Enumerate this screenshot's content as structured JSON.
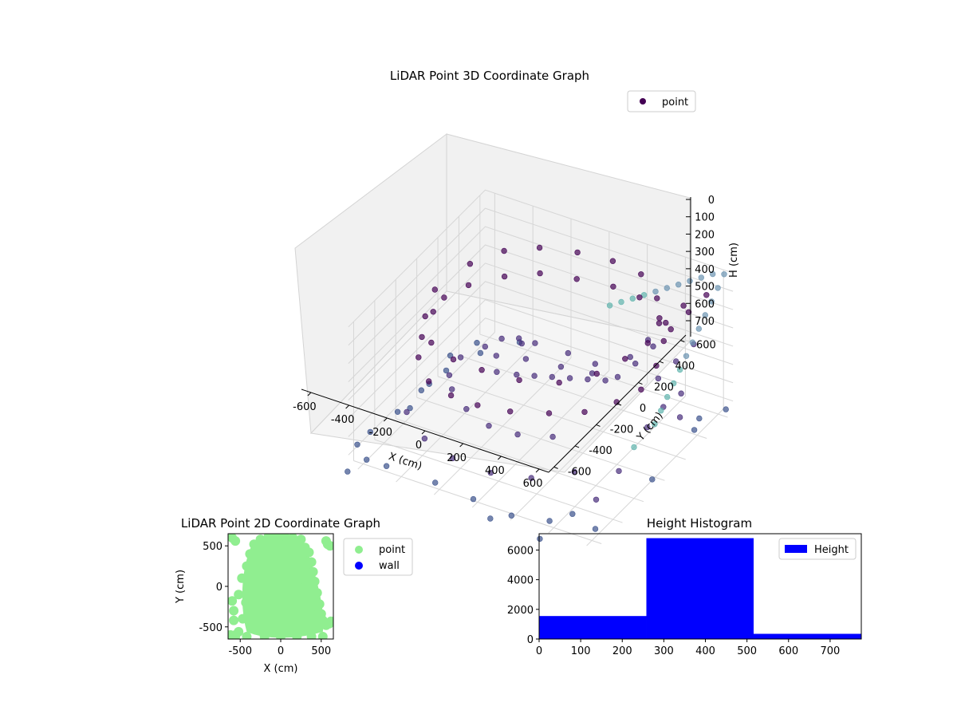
{
  "chart_data": [
    {
      "type": "scatter3d",
      "title": "LiDAR Point 3D Coordinate Graph",
      "xlabel": "X (cm)",
      "ylabel": "Y (cm)",
      "zlabel": "H (cm)",
      "xlim": [
        -650,
        650
      ],
      "ylim": [
        -650,
        650
      ],
      "zlim": [
        0,
        750
      ],
      "zaxis_inverted": true,
      "x_ticks": [
        -600,
        -400,
        -200,
        0,
        200,
        400,
        600
      ],
      "y_ticks": [
        -600,
        -400,
        -200,
        0,
        200,
        400,
        600
      ],
      "z_ticks": [
        0,
        100,
        200,
        300,
        400,
        500,
        600,
        700
      ],
      "grid": true,
      "legend": {
        "placement": "top-right",
        "entries": [
          {
            "label": "point",
            "color": "#440154"
          }
        ]
      },
      "colormap": "viridis",
      "series": [
        {
          "name": "point",
          "points": [
            [
              -520,
              -80,
              200
            ],
            [
              -480,
              -260,
              220
            ],
            [
              -420,
              -400,
              230
            ],
            [
              -300,
              -520,
              250
            ],
            [
              -150,
              -580,
              240
            ],
            [
              0,
              -600,
              230
            ],
            [
              160,
              -580,
              220
            ],
            [
              320,
              -500,
              220
            ],
            [
              440,
              -380,
              240
            ],
            [
              520,
              -220,
              250
            ],
            [
              560,
              -60,
              260
            ],
            [
              540,
              120,
              240
            ],
            [
              480,
              300,
              230
            ],
            [
              380,
              440,
              220
            ],
            [
              220,
              540,
              220
            ],
            [
              60,
              580,
              240
            ],
            [
              -120,
              560,
              250
            ],
            [
              -280,
              500,
              240
            ],
            [
              -400,
              380,
              230
            ],
            [
              -500,
              220,
              220
            ],
            [
              -540,
              60,
              210
            ],
            [
              -500,
              -100,
              60
            ],
            [
              -440,
              -300,
              70
            ],
            [
              -320,
              -460,
              80
            ],
            [
              -160,
              -540,
              70
            ],
            [
              0,
              -560,
              60
            ],
            [
              180,
              -530,
              70
            ],
            [
              340,
              -440,
              80
            ],
            [
              460,
              -300,
              70
            ],
            [
              520,
              -140,
              60
            ],
            [
              540,
              40,
              70
            ],
            [
              500,
              220,
              80
            ],
            [
              400,
              380,
              70
            ],
            [
              250,
              500,
              60
            ],
            [
              80,
              540,
              70
            ],
            [
              -100,
              530,
              80
            ],
            [
              -260,
              460,
              70
            ],
            [
              -380,
              340,
              60
            ],
            [
              -470,
              180,
              70
            ],
            [
              -120,
              -200,
              320
            ],
            [
              -60,
              -120,
              360
            ],
            [
              0,
              -60,
              380
            ],
            [
              60,
              0,
              400
            ],
            [
              120,
              60,
              420
            ],
            [
              180,
              120,
              440
            ],
            [
              240,
              180,
              460
            ],
            [
              -200,
              -60,
              340
            ],
            [
              -100,
              40,
              380
            ],
            [
              40,
              120,
              420
            ],
            [
              160,
              200,
              460
            ],
            [
              260,
              260,
              480
            ],
            [
              -260,
              100,
              360
            ],
            [
              -140,
              200,
              400
            ],
            [
              0,
              260,
              440
            ],
            [
              120,
              300,
              480
            ],
            [
              -300,
              -300,
              420
            ],
            [
              -180,
              -380,
              440
            ],
            [
              -40,
              -420,
              460
            ],
            [
              100,
              -400,
              470
            ],
            [
              240,
              -320,
              480
            ],
            [
              -380,
              -180,
              440
            ],
            [
              -420,
              0,
              460
            ],
            [
              -380,
              160,
              480
            ],
            [
              -280,
              300,
              480
            ],
            [
              -460,
              -440,
              520
            ],
            [
              -300,
              -560,
              540
            ],
            [
              -120,
              -620,
              550
            ],
            [
              80,
              -620,
              560
            ],
            [
              260,
              -560,
              560
            ],
            [
              420,
              -440,
              540
            ],
            [
              -520,
              -300,
              600
            ],
            [
              -560,
              -120,
              620
            ],
            [
              -540,
              80,
              620
            ],
            [
              -460,
              260,
              600
            ],
            [
              -320,
              400,
              580
            ],
            [
              600,
              -560,
              560
            ],
            [
              620,
              -380,
              500
            ],
            [
              600,
              -200,
              480
            ],
            [
              560,
              0,
              500
            ],
            [
              620,
              200,
              540
            ],
            [
              -620,
              -620,
              650
            ],
            [
              -560,
              -640,
              700
            ],
            [
              -640,
              -460,
              680
            ],
            [
              520,
              -640,
              620
            ],
            [
              640,
              -640,
              660
            ],
            [
              -640,
              300,
              700
            ],
            [
              -600,
              480,
              720
            ],
            [
              -420,
              560,
              700
            ],
            [
              600,
              420,
              680
            ],
            [
              640,
              600,
              720
            ],
            [
              -200,
              -640,
              700
            ],
            [
              0,
              -640,
              720
            ],
            [
              200,
              -640,
              740
            ],
            [
              400,
              -640,
              700
            ],
            [
              -640,
              -200,
              720
            ],
            [
              -640,
              100,
              740
            ],
            [
              640,
              -100,
              700
            ],
            [
              640,
              300,
              660
            ],
            [
              -500,
              -560,
              760
            ],
            [
              100,
              -660,
              780
            ],
            [
              -660,
              -640,
              800
            ],
            [
              360,
              -660,
              800
            ],
            [
              620,
              620,
              0
            ],
            [
              620,
              560,
              40
            ],
            [
              620,
              500,
              80
            ],
            [
              620,
              440,
              120
            ],
            [
              620,
              380,
              160
            ],
            [
              620,
              320,
              200
            ],
            [
              620,
              260,
              240
            ],
            [
              620,
              200,
              280
            ],
            [
              620,
              140,
              320
            ],
            [
              620,
              80,
              360
            ],
            [
              620,
              20,
              400
            ],
            [
              620,
              -40,
              440
            ],
            [
              560,
              620,
              20
            ],
            [
              500,
              620,
              60
            ],
            [
              440,
              620,
              100
            ],
            [
              380,
              620,
              140
            ],
            [
              320,
              620,
              180
            ],
            [
              260,
              620,
              220
            ],
            [
              200,
              620,
              260
            ],
            [
              140,
              620,
              300
            ],
            [
              80,
              620,
              340
            ],
            [
              20,
              620,
              380
            ],
            [
              560,
              560,
              100
            ],
            [
              500,
              500,
              180
            ],
            [
              440,
              440,
              260
            ],
            [
              380,
              380,
              340
            ],
            [
              320,
              320,
              420
            ],
            [
              560,
              440,
              300
            ],
            [
              500,
              380,
              380
            ],
            [
              440,
              320,
              460
            ],
            [
              560,
              320,
              500
            ],
            [
              500,
              260,
              560
            ],
            [
              440,
              560,
              200
            ],
            [
              380,
              500,
              280
            ],
            [
              320,
              440,
              360
            ],
            [
              260,
              380,
              440
            ]
          ]
        }
      ]
    },
    {
      "type": "scatter",
      "title": "LiDAR Point 2D Coordinate Graph",
      "xlabel": "X (cm)",
      "ylabel": "Y (cm)",
      "xlim": [
        -650,
        650
      ],
      "ylim": [
        -650,
        650
      ],
      "x_ticks": [
        -500,
        0,
        500
      ],
      "y_ticks": [
        -500,
        0,
        500
      ],
      "legend": {
        "placement": "outside-right",
        "entries": [
          {
            "label": "point",
            "color": "#90ee90"
          },
          {
            "label": "wall",
            "color": "#0000ff"
          }
        ]
      },
      "series": [
        {
          "name": "point",
          "color": "#90ee90",
          "points": [
            [
              -600,
              -180
            ],
            [
              -580,
              -420
            ],
            [
              -560,
              -600
            ],
            [
              -520,
              -560
            ],
            [
              -470,
              -400
            ],
            [
              -430,
              -200
            ],
            [
              -400,
              50
            ],
            [
              -350,
              300
            ],
            [
              -330,
              520
            ],
            [
              -250,
              580
            ],
            [
              -200,
              -600
            ],
            [
              -150,
              620
            ],
            [
              -50,
              620
            ],
            [
              50,
              620
            ],
            [
              150,
              600
            ],
            [
              250,
              580
            ],
            [
              300,
              480
            ],
            [
              350,
              420
            ],
            [
              380,
              300
            ],
            [
              400,
              180
            ],
            [
              420,
              60
            ],
            [
              450,
              -80
            ],
            [
              480,
              -220
            ],
            [
              500,
              -340
            ],
            [
              520,
              -420
            ],
            [
              560,
              -480
            ],
            [
              600,
              -460
            ],
            [
              620,
              -430
            ],
            [
              520,
              -620
            ],
            [
              380,
              -620
            ],
            [
              200,
              -620
            ],
            [
              0,
              -620
            ],
            [
              -200,
              -620
            ],
            [
              -420,
              -620
            ],
            [
              -560,
              -620
            ],
            [
              -620,
              -600
            ],
            [
              -580,
              -300
            ],
            [
              -520,
              -100
            ],
            [
              -480,
              100
            ],
            [
              -420,
              250
            ],
            [
              -380,
              400
            ],
            [
              -560,
              560
            ],
            [
              -600,
              600
            ],
            [
              580,
              520
            ],
            [
              610,
              500
            ],
            [
              560,
              560
            ],
            [
              -300,
              -300
            ],
            [
              -200,
              -100
            ],
            [
              -100,
              100
            ],
            [
              0,
              300
            ],
            [
              100,
              -200
            ],
            [
              200,
              0
            ],
            [
              300,
              200
            ],
            [
              -50,
              -450
            ],
            [
              150,
              -400
            ],
            [
              250,
              -300
            ],
            [
              -250,
              450
            ],
            [
              350,
              -150
            ],
            [
              450,
              -250
            ]
          ]
        },
        {
          "name": "wall",
          "color": "#0000ff",
          "points": []
        }
      ]
    },
    {
      "type": "bar",
      "title": "Height Histogram",
      "xlim": [
        0,
        775
      ],
      "ylim": [
        0,
        7100
      ],
      "x_ticks": [
        0,
        100,
        200,
        300,
        400,
        500,
        600,
        700
      ],
      "y_ticks": [
        0,
        2000,
        4000,
        6000
      ],
      "legend": {
        "placement": "top-right",
        "entries": [
          {
            "label": "Height",
            "color": "#0000ff"
          }
        ]
      },
      "series": [
        {
          "name": "Height",
          "color": "#0000ff",
          "bins": [
            [
              0,
              258,
              1550
            ],
            [
              258,
              516,
              6800
            ],
            [
              516,
              775,
              350
            ]
          ]
        }
      ]
    }
  ]
}
